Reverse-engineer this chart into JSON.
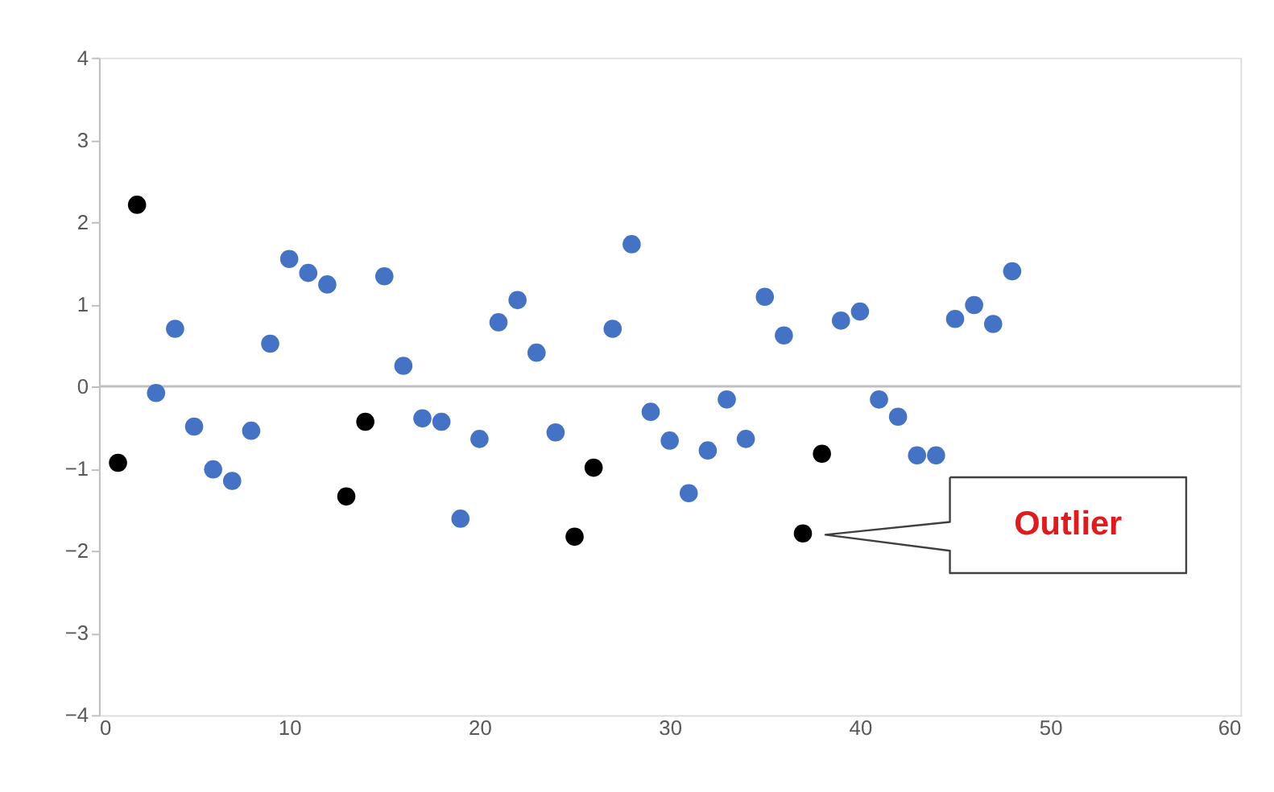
{
  "chart_data": {
    "type": "scatter",
    "marker": "circle",
    "grid": false,
    "legend": false,
    "xlim": [
      0,
      60
    ],
    "xticks": [
      0,
      10,
      20,
      30,
      40,
      50,
      60
    ],
    "ylim": [
      -4,
      4
    ],
    "yticks": [
      -4,
      -3,
      -2,
      -1,
      0,
      1,
      2,
      3,
      4
    ],
    "ref_lines": [
      {
        "axis": "y",
        "value": 0,
        "color": "#bfbfbf"
      }
    ],
    "series": [
      {
        "color": "#4472c4",
        "x": [
          3,
          4,
          5,
          6,
          7,
          8,
          9,
          10,
          11,
          12,
          15,
          16,
          17,
          18,
          19,
          20,
          21,
          22,
          23,
          24,
          27,
          28,
          29,
          30,
          31,
          32,
          33,
          34,
          35,
          36,
          39,
          40,
          41,
          42,
          43,
          44,
          45,
          46,
          47,
          48
        ],
        "values": [
          -0.08,
          0.7,
          -0.49,
          -1.01,
          -1.15,
          -0.54,
          0.52,
          1.55,
          1.38,
          1.24,
          1.34,
          0.25,
          -0.39,
          -0.43,
          -1.61,
          -0.64,
          0.78,
          1.05,
          0.41,
          -0.56,
          0.7,
          1.73,
          -0.31,
          -0.66,
          -1.3,
          -0.78,
          -0.16,
          -0.64,
          1.09,
          0.62,
          0.8,
          0.91,
          -0.16,
          -0.37,
          -0.84,
          -0.84,
          0.82,
          0.99,
          0.76,
          1.4
        ]
      },
      {
        "color": "#000000",
        "x": [
          1,
          2,
          13,
          14,
          25,
          26,
          37,
          38
        ],
        "values": [
          -0.93,
          2.21,
          -1.34,
          -0.43,
          -1.83,
          -0.99,
          -1.79,
          -0.82
        ]
      }
    ],
    "annotations": [
      "Outlier"
    ]
  }
}
